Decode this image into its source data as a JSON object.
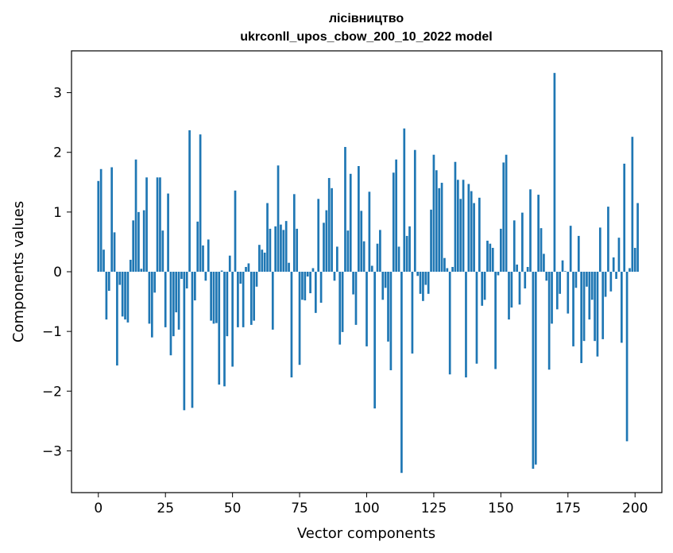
{
  "chart_data": {
    "type": "bar",
    "title": "лісівництво",
    "subtitle": "ukrconll_upos_cbow_200_10_2022 model",
    "xlabel": "Vector components",
    "ylabel": "Components values",
    "xlim": [
      -10,
      210
    ],
    "ylim": [
      -3.7,
      3.7
    ],
    "xticks": [
      0,
      25,
      50,
      75,
      100,
      125,
      150,
      175,
      200
    ],
    "yticks": [
      -3,
      -2,
      -1,
      0,
      1,
      2,
      3
    ],
    "xtick_labels": [
      "0",
      "25",
      "50",
      "75",
      "100",
      "125",
      "150",
      "175",
      "200"
    ],
    "ytick_labels": [
      "−3",
      "−2",
      "−1",
      "0",
      "1",
      "2",
      "3"
    ],
    "grid": false,
    "bar_color": "#1f77b4",
    "values": [
      1.52,
      1.72,
      0.37,
      -0.8,
      -0.32,
      1.75,
      0.66,
      -1.57,
      -0.22,
      -0.75,
      -0.8,
      -0.85,
      0.2,
      0.86,
      1.88,
      1.0,
      0.05,
      1.03,
      1.58,
      -0.87,
      -1.1,
      -0.35,
      1.58,
      1.58,
      0.69,
      -0.93,
      1.31,
      -1.4,
      -1.08,
      -0.68,
      -0.97,
      -0.12,
      -2.32,
      -0.28,
      2.37,
      -2.28,
      -0.48,
      0.84,
      2.3,
      0.44,
      -0.15,
      0.54,
      -0.82,
      -0.87,
      -0.86,
      -1.89,
      0.02,
      -1.92,
      -1.08,
      0.27,
      -1.59,
      1.36,
      -0.93,
      -0.2,
      -0.93,
      0.08,
      0.14,
      -0.89,
      -0.82,
      -0.25,
      0.45,
      0.37,
      0.32,
      1.15,
      0.72,
      -0.97,
      0.76,
      1.78,
      0.79,
      0.7,
      0.85,
      0.15,
      -1.77,
      1.3,
      0.72,
      -1.56,
      -0.47,
      -0.48,
      -0.08,
      -0.36,
      0.06,
      -0.69,
      1.22,
      -0.52,
      0.82,
      1.03,
      1.57,
      1.4,
      -0.15,
      0.42,
      -1.22,
      -1.01,
      2.09,
      0.69,
      1.64,
      -0.38,
      -0.89,
      1.77,
      1.02,
      0.51,
      -1.25,
      1.34,
      0.1,
      -2.29,
      0.47,
      0.7,
      -0.47,
      -0.27,
      -1.17,
      -1.65,
      1.66,
      1.88,
      0.42,
      -3.37,
      2.4,
      0.6,
      0.76,
      -1.37,
      2.04,
      -0.07,
      -0.37,
      -0.49,
      -0.22,
      -0.37,
      1.04,
      1.96,
      1.7,
      1.4,
      1.49,
      0.23,
      0.06,
      -1.72,
      0.08,
      1.84,
      1.54,
      1.22,
      1.54,
      -1.77,
      1.47,
      1.35,
      1.15,
      -1.54,
      1.24,
      -0.57,
      -0.47,
      0.52,
      0.47,
      0.4,
      -1.63,
      -0.06,
      0.72,
      1.83,
      1.96,
      -0.8,
      -0.6,
      0.86,
      0.12,
      -0.55,
      0.99,
      -0.28,
      0.08,
      1.38,
      -3.3,
      -3.23,
      1.29,
      0.73,
      0.3,
      -0.15,
      -1.64,
      -0.87,
      3.33,
      -0.63,
      -0.37,
      0.19,
      0.01,
      -0.7,
      0.77,
      -1.25,
      -0.27,
      0.6,
      -1.53,
      -1.16,
      -0.25,
      -0.8,
      -0.47,
      -1.16,
      -1.42,
      0.74,
      -1.13,
      -0.42,
      1.09,
      -0.33,
      0.24,
      -0.12,
      0.57,
      -1.19,
      1.81,
      -2.84,
      0.06,
      2.26,
      0.4,
      1.15
    ]
  }
}
